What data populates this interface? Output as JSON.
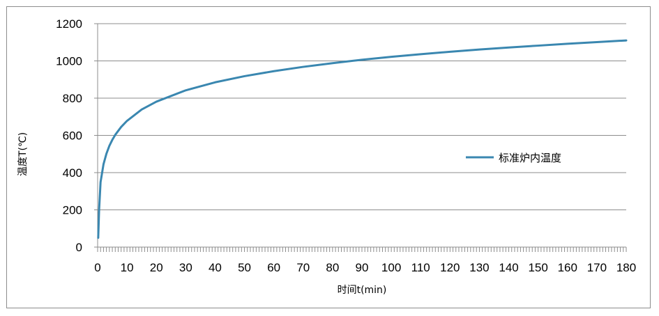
{
  "chart_data": {
    "type": "line",
    "title": "",
    "xlabel": "时间t(min)",
    "ylabel": "温度T(℃)",
    "xlim": [
      0,
      180
    ],
    "ylim": [
      0,
      1200
    ],
    "x_ticks": [
      0,
      10,
      20,
      30,
      40,
      50,
      60,
      70,
      80,
      90,
      100,
      110,
      120,
      130,
      140,
      150,
      160,
      170,
      180
    ],
    "y_ticks": [
      0,
      200,
      400,
      600,
      800,
      1000,
      1200
    ],
    "grid": "horizontal",
    "legend_position": "right",
    "series": [
      {
        "name": "标准炉内温度",
        "color": "#3a87b0",
        "x": [
          0.2,
          0.5,
          1,
          2,
          3,
          4,
          5,
          6,
          8,
          10,
          15,
          20,
          30,
          40,
          50,
          60,
          70,
          80,
          90,
          100,
          110,
          120,
          130,
          140,
          150,
          160,
          170,
          180
        ],
        "y": [
          50,
          200,
          349,
          445,
          502,
          544,
          576,
          603,
          645,
          678,
          739,
          781,
          842,
          885,
          918,
          945,
          968,
          988,
          1006,
          1022,
          1036,
          1049,
          1061,
          1072,
          1082,
          1092,
          1101,
          1110
        ]
      }
    ]
  }
}
